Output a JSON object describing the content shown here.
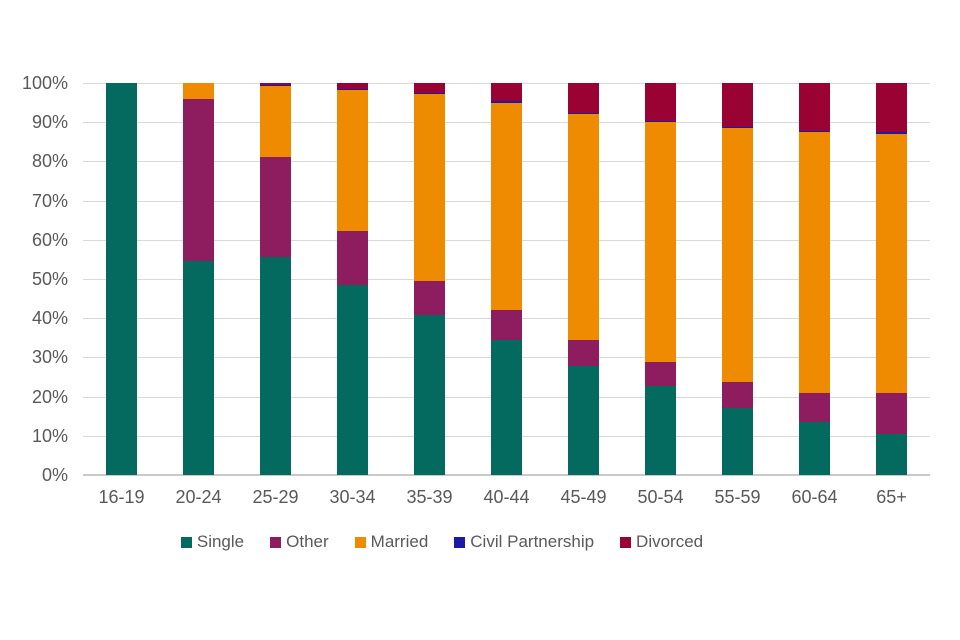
{
  "chart_data": {
    "type": "bar",
    "subtype": "stacked-100-percent",
    "title": "",
    "xlabel": "",
    "ylabel": "",
    "ylim": [
      0,
      100
    ],
    "grid": true,
    "legend_position": "bottom",
    "categories": [
      "16-19",
      "20-24",
      "25-29",
      "30-34",
      "35-39",
      "40-44",
      "45-49",
      "50-54",
      "55-59",
      "60-64",
      "65+"
    ],
    "y_ticks": [
      "0%",
      "10%",
      "20%",
      "30%",
      "40%",
      "50%",
      "60%",
      "70%",
      "80%",
      "90%",
      "100%"
    ],
    "series": [
      {
        "name": "Single",
        "color": "#04695E",
        "values": [
          100,
          54.7,
          55.7,
          48.6,
          40.8,
          34.5,
          27.8,
          22.8,
          17.2,
          13.5,
          10.5
        ]
      },
      {
        "name": "Other",
        "color": "#8E1D60",
        "values": [
          0,
          41.2,
          25.3,
          13.7,
          8.7,
          7.5,
          6.7,
          6.0,
          6.6,
          7.5,
          10.4
        ]
      },
      {
        "name": "Married",
        "color": "#EF8B00",
        "values": [
          0,
          4.1,
          18.2,
          35.9,
          47.6,
          53.0,
          57.5,
          61.3,
          64.7,
          66.4,
          66.2
        ]
      },
      {
        "name": "Civil Partnership",
        "color": "#1A1AA6",
        "values": [
          0,
          0,
          0.3,
          0.3,
          0.4,
          0.3,
          0.3,
          0.3,
          0.3,
          0.3,
          0.3
        ]
      },
      {
        "name": "Divorced",
        "color": "#9A0234",
        "values": [
          0,
          0,
          0.5,
          1.5,
          2.5,
          4.7,
          7.7,
          9.6,
          11.2,
          12.3,
          12.6
        ]
      }
    ]
  },
  "style": {
    "text_color": "#595959",
    "gridline_color": "#d9d9d9",
    "axis_line_color": "#c9c9c9",
    "background": "#ffffff"
  }
}
